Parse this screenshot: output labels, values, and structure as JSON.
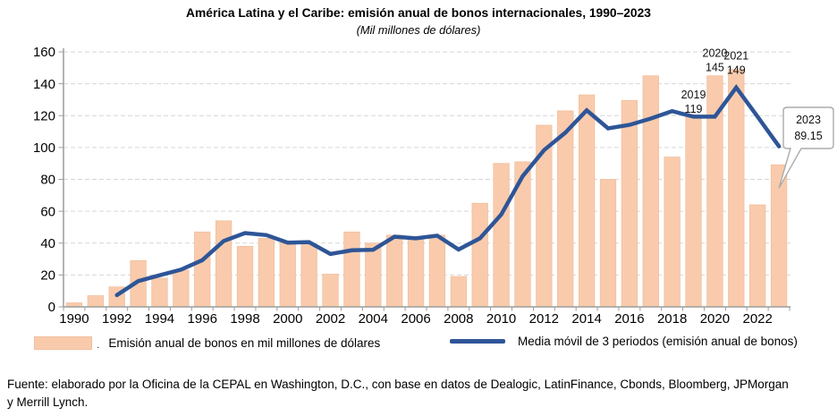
{
  "chart_data": {
    "type": "bar+line",
    "title": "América Latina y el Caribe: emisión anual de bonos internacionales, 1990–2023",
    "subtitle": "(Mil millones de dólares)",
    "xlabel": "",
    "ylabel": "",
    "ylim": [
      0,
      160
    ],
    "ytick_step": 20,
    "grid": "horizontal-dashed",
    "legend_position": "bottom",
    "categories": [
      "1990",
      "1991",
      "1992",
      "1993",
      "1994",
      "1995",
      "1996",
      "1997",
      "1998",
      "1999",
      "2000",
      "2001",
      "2002",
      "2003",
      "2004",
      "2005",
      "2006",
      "2007",
      "2008",
      "2009",
      "2010",
      "2011",
      "2012",
      "2013",
      "2014",
      "2015",
      "2016",
      "2017",
      "2018",
      "2019",
      "2020",
      "2021",
      "2022",
      "2023"
    ],
    "xtick_labels": [
      "1990",
      "1992",
      "1994",
      "1996",
      "1998",
      "2000",
      "2002",
      "2004",
      "2006",
      "2008",
      "2010",
      "2012",
      "2014",
      "2016",
      "2018",
      "2020",
      "2022"
    ],
    "series": [
      {
        "name": "Emisión anual de bonos en mil millones de dólares",
        "type": "bar",
        "color": "#F9CBAC",
        "edge_color": "#f0bf9d",
        "values": [
          2.5,
          7,
          12.5,
          29,
          18,
          23,
          47,
          54,
          38,
          43,
          40,
          39,
          20.5,
          47,
          40,
          45,
          44,
          45,
          19,
          65,
          90,
          91,
          114,
          123,
          133,
          80,
          129.5,
          145,
          94,
          119,
          145,
          149,
          64,
          89.15
        ]
      },
      {
        "name": "Media móvil de 3 periodos (emisión anual de bonos)",
        "type": "line",
        "color": "#2E5597",
        "start_year": "1992",
        "values": [
          7.33,
          16.17,
          19.83,
          23.33,
          29.33,
          41.33,
          46.33,
          45.0,
          40.33,
          40.67,
          33.17,
          35.5,
          35.83,
          44.0,
          43.0,
          44.67,
          36.0,
          43.0,
          58.0,
          82.0,
          98.33,
          109.33,
          123.33,
          112.0,
          114.17,
          118.17,
          122.83,
          119.33,
          119.33,
          137.67,
          119.33,
          100.72
        ]
      }
    ],
    "annotations": [
      {
        "year": "2019",
        "label_year": "2019",
        "label_value": "119",
        "value": 119,
        "dy": 0
      },
      {
        "year": "2020",
        "label_year": "2020",
        "label_value": "145",
        "value": 145,
        "dy": 0
      },
      {
        "year": "2021",
        "label_year": "2021",
        "label_value": "149",
        "value": 149,
        "dy": 10
      }
    ],
    "callout": {
      "year": "2023",
      "label_year": "2023",
      "label_value": "89.15",
      "value": 89.15
    }
  },
  "legend": {
    "separator_dot": "."
  },
  "footer": {
    "source_line1": "Fuente: elaborado por la Oficina de la CEPAL en Washington, D.C., con base en datos de Dealogic, LatinFinance, Cbonds, Bloomberg, JPMorgan",
    "source_line2": "y Merrill Lynch."
  }
}
